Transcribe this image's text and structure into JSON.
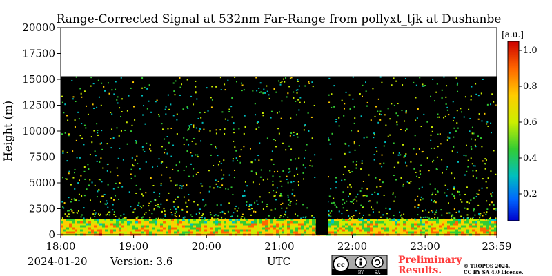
{
  "chart_data": {
    "type": "heatmap",
    "title": "Range-Corrected Signal at 532nm Far-Range from pollyxt_tjk at Dushanbe",
    "xlabel": "",
    "ylabel": "Height (m)",
    "x_tick_labels": [
      "18:00",
      "19:00",
      "20:00",
      "21:00",
      "22:00",
      "23:00",
      "23:59"
    ],
    "x_tick_hours": [
      18,
      19,
      20,
      21,
      22,
      23,
      23.983
    ],
    "xlim_hours": [
      18,
      23.983
    ],
    "y_ticks": [
      0,
      2500,
      5000,
      7500,
      10000,
      12500,
      15000,
      17500,
      20000
    ],
    "ylim": [
      0,
      20000
    ],
    "data_top_height": 15300,
    "data_gap_hours": [
      21.5,
      21.67
    ],
    "colorbar": {
      "unit": "[a.u.]",
      "ticks": [
        0.2,
        0.4,
        0.6,
        0.8,
        1.0
      ],
      "tick_labels": [
        "0.2",
        "0.4",
        "0.6",
        "0.8",
        "1.0"
      ],
      "range": [
        0.05,
        1.05
      ],
      "colormap": [
        "#0000cc",
        "#0066ff",
        "#00bfbf",
        "#33cc33",
        "#ccee00",
        "#ffcc00",
        "#ff6600",
        "#cc0000"
      ]
    },
    "grid": false,
    "legend": "colorbar right"
  },
  "footer": {
    "date": "2024-01-20",
    "version": "Version: 3.6",
    "utc_label": "UTC",
    "preliminary_line1": "Preliminary",
    "preliminary_line2": "Results.",
    "copyright_line1": "© TROPOS 2024.",
    "copyright_line2": "CC BY SA 4.0 License.",
    "license_badge": {
      "cc": "cc",
      "by": "BY",
      "sa": "SA"
    }
  }
}
